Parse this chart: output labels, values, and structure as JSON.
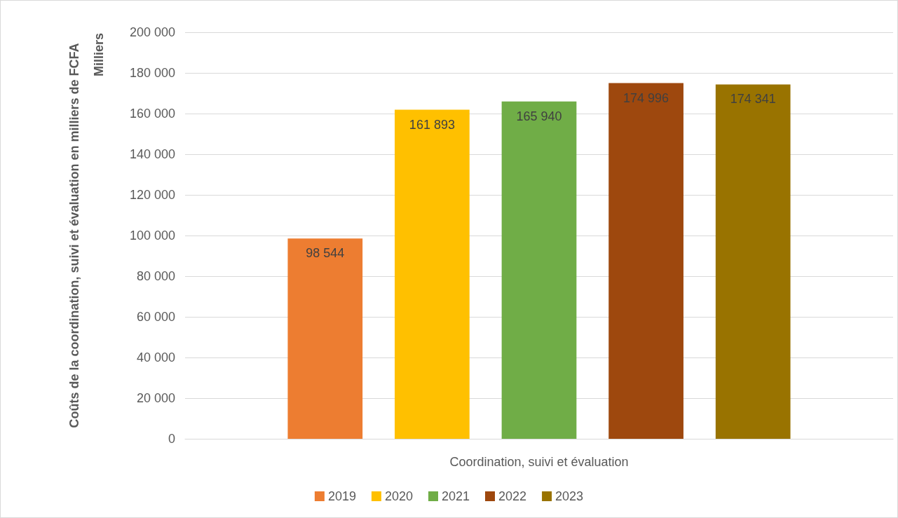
{
  "chart_data": {
    "type": "bar",
    "xlabel": null,
    "ylabel": "Coûts de la coordination, suivi et évaluation en milliers de FCFA",
    "annotations": [
      "Milliers"
    ],
    "categories": [
      "Coordination, suivi et évaluation"
    ],
    "series": [
      {
        "name": "2019",
        "color": "#ed7d31",
        "values": [
          98544
        ]
      },
      {
        "name": "2020",
        "color": "#ffc000",
        "values": [
          161893
        ]
      },
      {
        "name": "2021",
        "color": "#70ad47",
        "values": [
          165940
        ]
      },
      {
        "name": "2022",
        "color": "#9e480e",
        "values": [
          174996
        ]
      },
      {
        "name": "2023",
        "color": "#997300",
        "values": [
          174341
        ]
      }
    ],
    "ylim": [
      0,
      200000
    ],
    "yticks": [
      {
        "value": 0,
        "label": "0"
      },
      {
        "value": 20000,
        "label": "20 000"
      },
      {
        "value": 40000,
        "label": "40 000"
      },
      {
        "value": 60000,
        "label": "60 000"
      },
      {
        "value": 80000,
        "label": "80 000"
      },
      {
        "value": 100000,
        "label": "100 000"
      },
      {
        "value": 120000,
        "label": "120 000"
      },
      {
        "value": 140000,
        "label": "140 000"
      },
      {
        "value": 160000,
        "label": "160 000"
      },
      {
        "value": 180000,
        "label": "180 000"
      },
      {
        "value": 200000,
        "label": "200 000"
      }
    ],
    "grid": true,
    "legend": "bottom",
    "data_labels": true
  }
}
